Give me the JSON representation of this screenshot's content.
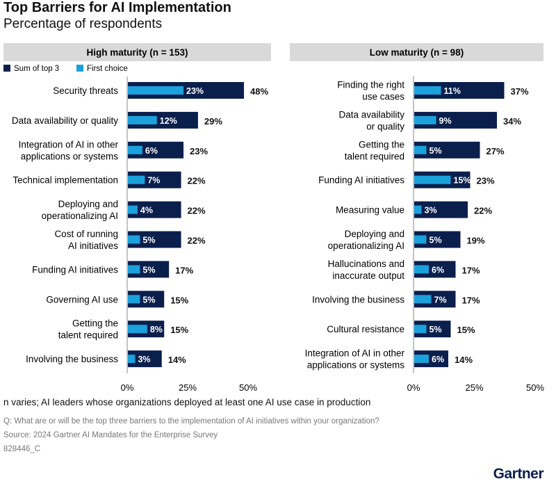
{
  "title": "Top Barriers for AI Implementation",
  "subtitle": "Percentage of respondents",
  "note": "n varies; AI leaders whose organizations deployed at least one AI use case in production",
  "question": "Q: What are or will be the top three barriers to the implementation of AI initiatives within your organization?",
  "source": "Source: 2024 Gartner AI Mandates for the Enterprise Survey",
  "id": "828446_C",
  "logo": "Gartner",
  "colors": {
    "sum_top3": "#0b1f4d",
    "first_choice": "#1ba1dc",
    "header_bg": "#d9d9d9"
  },
  "chart_data": [
    {
      "type": "bar",
      "orientation": "horizontal",
      "title": "High maturity (n = 153)",
      "legend": [
        "Sum of top 3",
        "First choice"
      ],
      "legend_placement": "top-left",
      "xlim": [
        0,
        50
      ],
      "xticks": [
        "0%",
        "25%",
        "50%"
      ],
      "grid": false,
      "categories": [
        "Security threats",
        "Data availability or quality",
        "Integration of AI in other|applications or systems",
        "Technical implementation",
        "Deploying and|operationalizing AI",
        "Cost of running|AI initiatives",
        "Funding AI initiatives",
        "Governing AI use",
        "Getting the|talent required",
        "Involving the business"
      ],
      "series": [
        {
          "name": "Sum of top 3",
          "values": [
            48,
            29,
            23,
            22,
            22,
            22,
            17,
            15,
            15,
            14
          ]
        },
        {
          "name": "First choice",
          "values": [
            23,
            12,
            6,
            7,
            4,
            5,
            5,
            5,
            8,
            3
          ]
        }
      ]
    },
    {
      "type": "bar",
      "orientation": "horizontal",
      "title": "Low maturity (n = 98)",
      "xlim": [
        0,
        50
      ],
      "xticks": [
        "0%",
        "25%",
        "50%"
      ],
      "grid": false,
      "categories": [
        "Finding the right|use cases",
        "Data availability|or quality",
        "Getting the|talent required",
        "Funding AI initiatives",
        "Measuring value",
        "Deploying and|operationalizing AI",
        "Hallucinations and|inaccurate output",
        "Involving the business",
        "Cultural resistance",
        "Integration of AI in other|applications or systems"
      ],
      "series": [
        {
          "name": "Sum of top 3",
          "values": [
            37,
            34,
            27,
            23,
            22,
            19,
            17,
            17,
            15,
            14
          ]
        },
        {
          "name": "First choice",
          "values": [
            11,
            9,
            5,
            15,
            3,
            5,
            6,
            7,
            5,
            6
          ]
        }
      ]
    }
  ]
}
